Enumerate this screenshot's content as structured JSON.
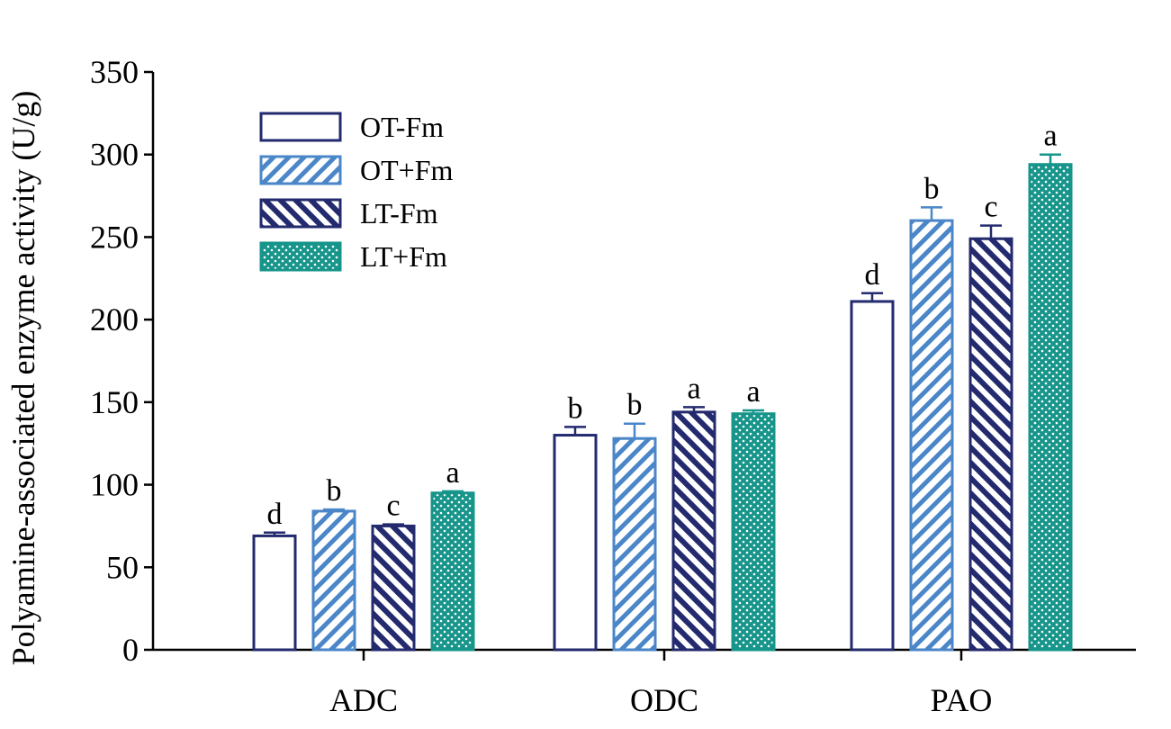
{
  "chart_data": {
    "type": "bar",
    "title": "",
    "xlabel": "",
    "ylabel": "Polyamine-associated enzyme activity (U/g)",
    "ylim": [
      0,
      350
    ],
    "yticks": [
      0,
      50,
      100,
      150,
      200,
      250,
      300,
      350
    ],
    "grid": false,
    "legend_position": "top-left",
    "categories": [
      "ADC",
      "ODC",
      "PAO"
    ],
    "series": [
      {
        "name": "OT-Fm",
        "pattern": "empty",
        "color": "#232a6e",
        "values": [
          69,
          130,
          211
        ],
        "errors": [
          2,
          5,
          5
        ],
        "letters": [
          "d",
          "b",
          "d"
        ]
      },
      {
        "name": "OT+Fm",
        "pattern": "forward-diagonal",
        "color": "#4a86c8",
        "values": [
          84,
          128,
          260
        ],
        "errors": [
          1,
          9,
          8
        ],
        "letters": [
          "b",
          "b",
          "b"
        ]
      },
      {
        "name": "LT-Fm",
        "pattern": "backward-diagonal",
        "color": "#232a6e",
        "values": [
          75,
          144,
          249
        ],
        "errors": [
          1,
          3,
          8
        ],
        "letters": [
          "c",
          "a",
          "c"
        ]
      },
      {
        "name": "LT+Fm",
        "pattern": "dots",
        "color": "#17958a",
        "values": [
          95,
          143,
          294
        ],
        "errors": [
          1,
          2,
          6
        ],
        "letters": [
          "a",
          "a",
          "a"
        ]
      }
    ]
  }
}
